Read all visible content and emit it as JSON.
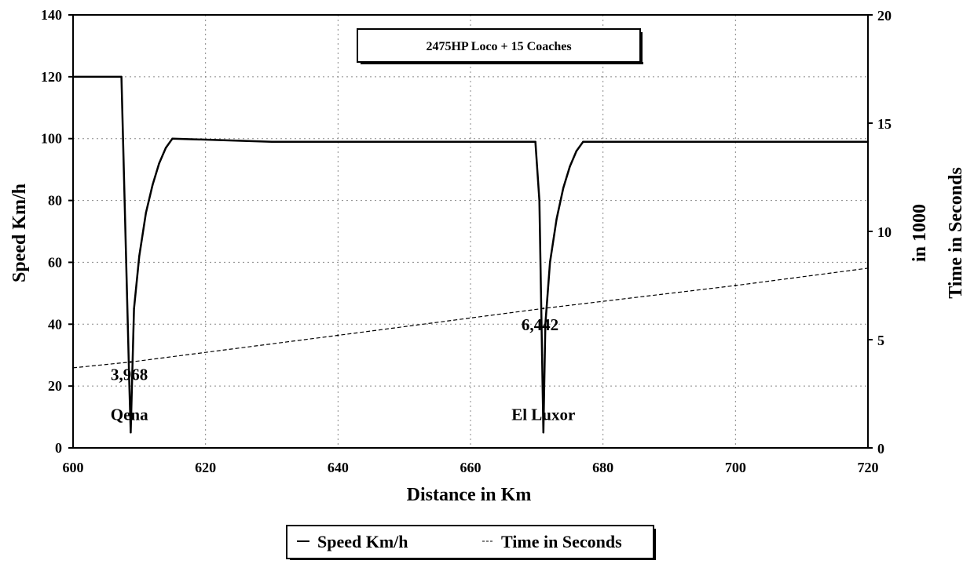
{
  "chart_data": {
    "type": "line",
    "title": "2475HP Loco + 15 Coaches",
    "xlabel": "Distance in Km",
    "ylabel": "Speed Km/h",
    "y2label": "Time in Seconds",
    "y2label_sub": "in 1000",
    "xlim": [
      600,
      720
    ],
    "ylim": [
      0,
      140
    ],
    "y2lim": [
      0,
      20
    ],
    "x_ticks": [
      "600",
      "620",
      "640",
      "660",
      "680",
      "700",
      "720"
    ],
    "y_ticks": [
      "0",
      "20",
      "40",
      "60",
      "80",
      "100",
      "120",
      "140"
    ],
    "y2_ticks": [
      "0",
      "5",
      "10",
      "15",
      "20"
    ],
    "grid": true,
    "legend_position": "bottom",
    "series": [
      {
        "name": "Speed Km/h",
        "axis": "left",
        "x": [
          600,
          607.3,
          608.5,
          608.7,
          609.2,
          610,
          611,
          612,
          613,
          614,
          615,
          630,
          650,
          669.8,
          670.4,
          670.8,
          671.0,
          671.3,
          672,
          673,
          674,
          675,
          676,
          677,
          690,
          710,
          720
        ],
        "y": [
          120,
          120,
          20,
          5,
          45,
          62,
          76,
          85,
          92,
          97,
          100,
          99,
          99,
          99,
          80,
          30,
          5,
          40,
          60,
          74,
          84,
          91,
          96,
          99,
          99,
          99,
          99
        ]
      },
      {
        "name": "Time in Seconds",
        "axis": "right",
        "x": [
          600,
          608.7,
          640,
          671,
          700,
          720
        ],
        "y": [
          3.7,
          3.968,
          5.2,
          6.442,
          7.5,
          8.3
        ]
      }
    ],
    "annotations": [
      {
        "text": "3,968",
        "x": 608.5,
        "y": 22
      },
      {
        "text": "6,442",
        "x": 670.5,
        "y": 38
      },
      {
        "text": "Qena",
        "x": 608.5,
        "y": 9
      },
      {
        "text": "El Luxor",
        "x": 671,
        "y": 9
      }
    ]
  }
}
